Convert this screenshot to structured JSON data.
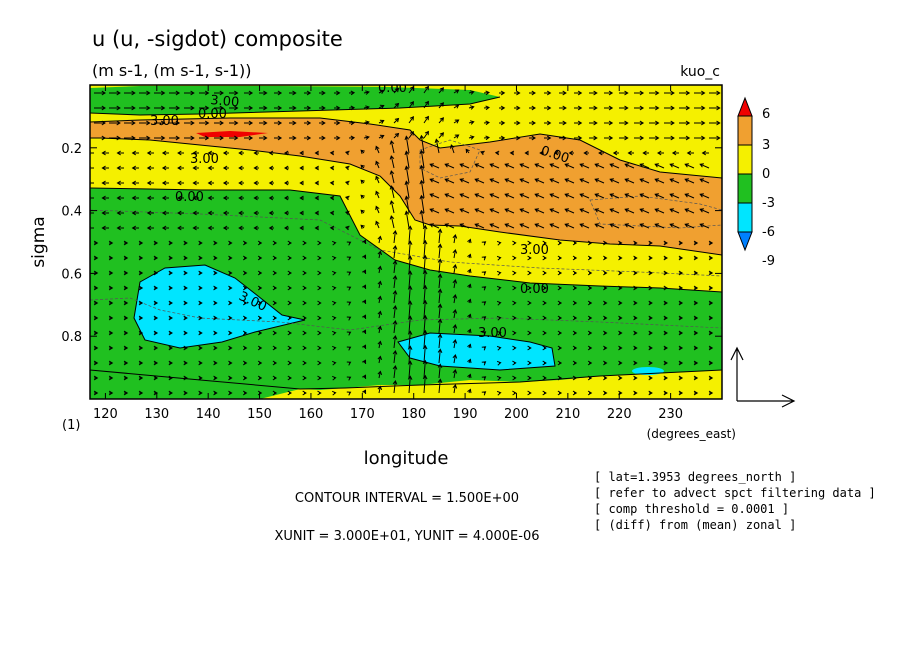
{
  "chart_data": {
    "type": "heatmap",
    "title": "u (u, -sigdot) composite",
    "subtitle": "(m s-1, (m s-1, s-1))",
    "tag": "kuo_c",
    "xlabel": "longitude",
    "xunit_label": "(degrees_east)",
    "ylabel": "sigma",
    "panel_label": "(1)",
    "xlim": [
      117,
      240
    ],
    "ylim": [
      1.0,
      0.0
    ],
    "x_ticks": [
      "120",
      "130",
      "140",
      "150",
      "160",
      "170",
      "180",
      "190",
      "200",
      "210",
      "220",
      "230"
    ],
    "y_ticks": [
      "0.2",
      "0.4",
      "0.6",
      "0.8"
    ],
    "colorbar": {
      "levels": [
        "6",
        "3",
        "0",
        "-3",
        "-6",
        "-9"
      ],
      "colors": [
        "#f00000",
        "#f0a030",
        "#f5f000",
        "#20c020",
        "#00e5ff",
        "#0080ff"
      ]
    },
    "contour_labels": [
      "0.00",
      "3.00",
      "0.00",
      "3.00",
      "3.00",
      "0.00",
      "0.00",
      "3.00",
      "0.00",
      "3.00",
      "3.00"
    ],
    "footer": {
      "contour_interval": "CONTOUR INTERVAL = 1.500E+00",
      "units": "XUNIT = 3.000E+01, YUNIT = 4.000E-06"
    },
    "notes": [
      "[ lat=1.3953 degrees_north ]",
      "[ refer to advect spct filtering data ]",
      "[ comp threshold = 0.0001 ]",
      "[ (diff) from (mean) zonal ]"
    ]
  }
}
